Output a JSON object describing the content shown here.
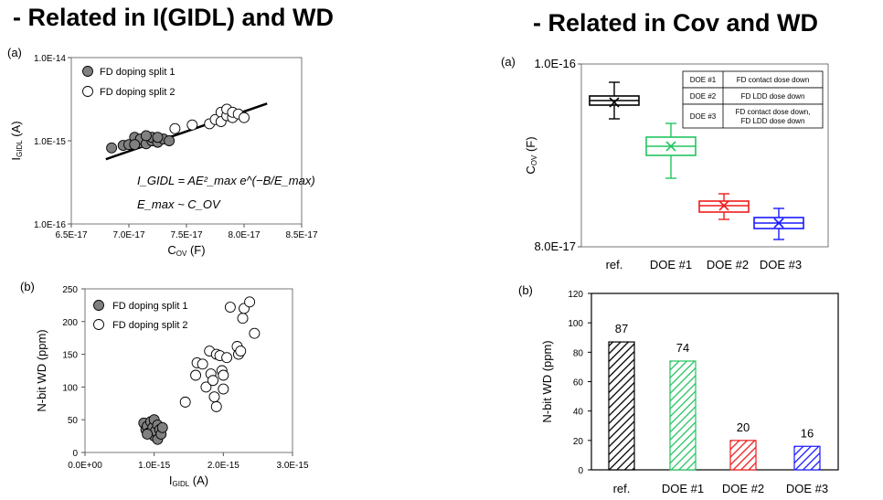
{
  "headings": {
    "left": "- Related in I(GIDL) and WD",
    "right": "- Related in Cov and WD"
  },
  "colors": {
    "split1_fill": "#808080",
    "ref": "#000000",
    "doe1": "#22c55e",
    "doe2": "#ef1c1c",
    "doe3": "#1a1aff"
  },
  "chart_data": [
    {
      "id": "top-left",
      "type": "scatter",
      "panel_label": "(a)",
      "xlabel": "C",
      "xlabel_sub": "OV",
      "xlabel_unit": " (F)",
      "ylabel": "I",
      "ylabel_sub": "GIDL",
      "ylabel_unit": " (A)",
      "xlim": [
        6.5e-17,
        8.5e-17
      ],
      "ylim": [
        1e-16,
        1e-14
      ],
      "yscale": "log",
      "xticks": [
        "6.5E-17",
        "7.0E-17",
        "7.5E-17",
        "8.0E-17",
        "8.5E-17"
      ],
      "yticks": [
        "1.0E-16",
        "1.0E-15",
        "1.0E-14"
      ],
      "legend": [
        "FD doping split 1",
        "FD doping split 2"
      ],
      "legend_position": "top-left",
      "equation_line1": "I_GIDL = AE²_max e^(−B/E_max)",
      "equation_line2": "E_max ~ C_OV",
      "fit_line": {
        "x": [
          6.8e-17,
          8.2e-17
        ],
        "y": [
          6e-16,
          2.8e-15
        ]
      },
      "series": [
        {
          "name": "FD doping split 1",
          "points": [
            [
              6.85e-17,
              8.2e-16
            ],
            [
              6.95e-17,
              8.8e-16
            ],
            [
              7e-17,
              9e-16
            ],
            [
              7.05e-17,
              1.1e-15
            ],
            [
              7.1e-17,
              9.5e-16
            ],
            [
              7.1e-17,
              1.05e-15
            ],
            [
              7.15e-17,
              9.2e-16
            ],
            [
              7.2e-17,
              1e-15
            ],
            [
              7.2e-17,
              1.1e-15
            ],
            [
              7.25e-17,
              9.6e-16
            ],
            [
              7.3e-17,
              1.05e-15
            ],
            [
              7.35e-17,
              1e-15
            ],
            [
              7.05e-17,
              9e-16
            ],
            [
              7.15e-17,
              1.15e-15
            ],
            [
              7.25e-17,
              1.1e-15
            ]
          ]
        },
        {
          "name": "FD doping split 2",
          "points": [
            [
              7.4e-17,
              1.4e-15
            ],
            [
              7.55e-17,
              1.55e-15
            ],
            [
              7.7e-17,
              1.6e-15
            ],
            [
              7.75e-17,
              1.8e-15
            ],
            [
              7.8e-17,
              2.2e-15
            ],
            [
              7.8e-17,
              1.7e-15
            ],
            [
              7.85e-17,
              2e-15
            ],
            [
              7.85e-17,
              2.4e-15
            ],
            [
              7.9e-17,
              1.9e-15
            ],
            [
              7.9e-17,
              2.2e-15
            ],
            [
              7.95e-17,
              2.1e-15
            ],
            [
              8e-17,
              1.9e-15
            ]
          ]
        }
      ]
    },
    {
      "id": "bottom-left",
      "type": "scatter",
      "panel_label": "(b)",
      "xlabel": "I",
      "xlabel_sub": "GIDL",
      "xlabel_unit": " (A)",
      "ylabel": "N-bit WD (ppm)",
      "xlim": [
        0,
        3e-15
      ],
      "ylim": [
        0,
        250
      ],
      "xticks": [
        "0.0E+00",
        "1.0E-15",
        "2.0E-15",
        "3.0E-15"
      ],
      "yticks": [
        "0",
        "50",
        "100",
        "150",
        "200",
        "250"
      ],
      "legend": [
        "FD doping split 1",
        "FD doping split 2"
      ],
      "legend_position": "top-left",
      "series": [
        {
          "name": "FD doping split 1",
          "points": [
            [
              8.5e-16,
              45
            ],
            [
              8.8e-16,
              35
            ],
            [
              9e-16,
              40
            ],
            [
              9.2e-16,
              30
            ],
            [
              9.5e-16,
              47
            ],
            [
              9.8e-16,
              38
            ],
            [
              1e-15,
              50
            ],
            [
              1e-15,
              25
            ],
            [
              1.02e-15,
              33
            ],
            [
              1.05e-15,
              42
            ],
            [
              1.05e-15,
              20
            ],
            [
              1.08e-15,
              35
            ],
            [
              1.1e-15,
              28
            ],
            [
              9e-16,
              28
            ],
            [
              1.12e-15,
              38
            ]
          ]
        },
        {
          "name": "FD doping split 2",
          "points": [
            [
              1.45e-15,
              77
            ],
            [
              1.6e-15,
              118
            ],
            [
              1.62e-15,
              137
            ],
            [
              1.7e-15,
              135
            ],
            [
              1.75e-15,
              100
            ],
            [
              1.8e-15,
              155
            ],
            [
              1.82e-15,
              120
            ],
            [
              1.85e-15,
              110
            ],
            [
              1.87e-15,
              85
            ],
            [
              1.9e-15,
              70
            ],
            [
              1.9e-15,
              150
            ],
            [
              1.95e-15,
              148
            ],
            [
              1.98e-15,
              125
            ],
            [
              2e-15,
              118
            ],
            [
              2e-15,
              97
            ],
            [
              2.05e-15,
              145
            ],
            [
              2.1e-15,
              222
            ],
            [
              2.2e-15,
              162
            ],
            [
              2.22e-15,
              150
            ],
            [
              2.25e-15,
              155
            ],
            [
              2.28e-15,
              205
            ],
            [
              2.3e-15,
              220
            ],
            [
              2.38e-15,
              230
            ],
            [
              2.45e-15,
              182
            ]
          ]
        }
      ]
    },
    {
      "id": "top-right",
      "type": "box",
      "panel_label": "(a)",
      "ylabel": "C",
      "ylabel_sub": "OV",
      "ylabel_unit": " (F)",
      "ylim": [
        8e-17,
        1e-16
      ],
      "yticks": [
        "8.0E-17",
        "1.0E-16"
      ],
      "categories": [
        "ref.",
        "DOE #1",
        "DOE #2",
        "DOE #3"
      ],
      "boxes": [
        {
          "whisker_low": 9.4e-17,
          "q1": 9.55e-17,
          "median": 9.6e-17,
          "mean": 9.58e-17,
          "q3": 9.65e-17,
          "whisker_high": 9.8e-17
        },
        {
          "whisker_low": 8.75e-17,
          "q1": 9e-17,
          "median": 9.1e-17,
          "mean": 9.1e-17,
          "q3": 9.2e-17,
          "whisker_high": 9.35e-17
        },
        {
          "whisker_low": 8.3e-17,
          "q1": 8.38e-17,
          "median": 8.45e-17,
          "mean": 8.45e-17,
          "q3": 8.5e-17,
          "whisker_high": 8.58e-17
        },
        {
          "whisker_low": 8.08e-17,
          "q1": 8.2e-17,
          "median": 8.26e-17,
          "mean": 8.26e-17,
          "q3": 8.32e-17,
          "whisker_high": 8.42e-17
        }
      ],
      "table": [
        {
          "key": "DOE #1",
          "value": [
            "FD contact dose down"
          ]
        },
        {
          "key": "DOE #2",
          "value": [
            "FD LDD dose down"
          ]
        },
        {
          "key": "DOE #3",
          "value": [
            "FD contact dose down,",
            "FD LDD dose down"
          ]
        }
      ]
    },
    {
      "id": "bottom-right",
      "type": "bar",
      "panel_label": "(b)",
      "ylabel": "N-bit WD (ppm)",
      "ylim": [
        0,
        120
      ],
      "yticks": [
        "0",
        "20",
        "40",
        "60",
        "80",
        "100",
        "120"
      ],
      "categories": [
        "ref.",
        "DOE #1",
        "DOE #2",
        "DOE #3"
      ],
      "values": [
        87,
        74,
        20,
        16
      ],
      "value_labels": [
        "87",
        "74",
        "20",
        "16"
      ],
      "fill": "diagonal hatch"
    }
  ]
}
